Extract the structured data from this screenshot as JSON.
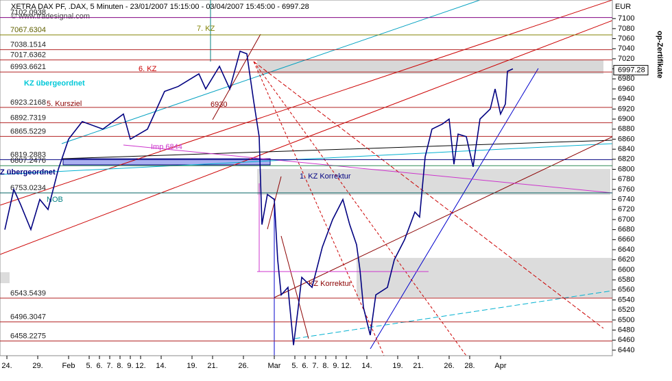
{
  "chart_data": {
    "type": "line",
    "title": "XETRA DAX PF, .DAX, 5 Minuten - 23/01/2007 15:15:00 - 03/04/2007 15:45:00 - 6997.28",
    "subtitle": "© www.tradesignal.com",
    "y_axis_label": "EUR",
    "side_label": "op-Zertifikate",
    "last_value": 6997.28,
    "series": [
      {
        "name": "XETRA DAX PF",
        "color": "#000080",
        "x": [
          0.8,
          1.67,
          2.33,
          3.33,
          4.2,
          5,
          6,
          7,
          8.33,
          10.33,
          12.33,
          13,
          14.67,
          16.33,
          17.67,
          19.67,
          20.33,
          21.67,
          22.67,
          23.67,
          24.33,
          25,
          25.53,
          25.8,
          26.33,
          27,
          27.33,
          27.67,
          28.33,
          28.87,
          29.33,
          29.67,
          30.67,
          31.67,
          32.67,
          33.67,
          34.33,
          35,
          35.33,
          35.67,
          36.33,
          36.87,
          38,
          38.67,
          39.67,
          40.67,
          41.13,
          41.67,
          42.33,
          43.33,
          44,
          44.47,
          44.87,
          45.67,
          46.33,
          47,
          48,
          48.47,
          49,
          49.47,
          49.67,
          50.2
        ],
        "values": [
          6680,
          6760,
          6730,
          6680,
          6740,
          6720,
          6800,
          6860,
          6895,
          6880,
          6910,
          6860,
          6880,
          6955,
          6965,
          6990,
          6960,
          7005,
          6960,
          7035,
          7030,
          6935,
          6865,
          6690,
          6750,
          6740,
          6620,
          6550,
          6565,
          6450,
          6525,
          6585,
          6565,
          6645,
          6700,
          6740,
          6690,
          6650,
          6600,
          6525,
          6470,
          6550,
          6565,
          6620,
          6660,
          6715,
          6705,
          6825,
          6880,
          6890,
          6900,
          6810,
          6870,
          6865,
          6805,
          6900,
          6920,
          6960,
          6910,
          6930,
          6995,
          7000
        ]
      }
    ],
    "levels": [
      {
        "value": 7102.0938,
        "color": "#800080"
      },
      {
        "value": 7067.6304,
        "color": "#808000"
      },
      {
        "value": 7038.1514,
        "color": "#b22222"
      },
      {
        "value": 7017.6362,
        "color": "#b22222"
      },
      {
        "value": 6993.6621,
        "color": "#b22222"
      },
      {
        "value": 6923.2168,
        "color": "#b22222"
      },
      {
        "value": 6892.7319,
        "color": "#b22222"
      },
      {
        "value": 6865.5229,
        "color": "#b22222"
      },
      {
        "value": 6819.2883,
        "color": "#000080"
      },
      {
        "value": 6807.2476,
        "color": "#2e8b57"
      },
      {
        "value": 6753.0234,
        "color": "#006060"
      },
      {
        "value": 6543.5439,
        "color": "#b22222"
      },
      {
        "value": 6496.3047,
        "color": "#b22222"
      },
      {
        "value": 6458.2275,
        "color": "#b22222"
      }
    ],
    "annotations": [
      "7. KZ",
      "6. KZ",
      "KZ übergeordnet",
      "5. Kursziel",
      "Z übergeordnet",
      "1. KZ Korrektur",
      "KZ Korrektur",
      "NOB",
      "Imp 6844",
      "6930"
    ],
    "ylim": [
      6429,
      7137
    ],
    "yticks": [
      6440,
      6460,
      6480,
      6500,
      6520,
      6540,
      6560,
      6580,
      6600,
      6620,
      6640,
      6660,
      6680,
      6700,
      6720,
      6740,
      6760,
      6780,
      6800,
      6820,
      6840,
      6860,
      6880,
      6900,
      6920,
      6940,
      6960,
      6980,
      7000,
      7020,
      7040,
      7060,
      7080,
      7100
    ],
    "xlim": [
      0.33,
      59.87
    ],
    "xticks": [
      {
        "value": 1,
        "label": "24."
      },
      {
        "value": 4,
        "label": "29."
      },
      {
        "value": 7,
        "label": "Feb"
      },
      {
        "value": 9,
        "label": "5."
      },
      {
        "value": 10,
        "label": "6."
      },
      {
        "value": 11,
        "label": "7."
      },
      {
        "value": 12,
        "label": "8."
      },
      {
        "value": 13,
        "label": "9."
      },
      {
        "value": 14,
        "label": "12."
      },
      {
        "value": 16,
        "label": "14."
      },
      {
        "value": 19,
        "label": "19."
      },
      {
        "value": 21,
        "label": "21."
      },
      {
        "value": 24,
        "label": "26."
      },
      {
        "value": 27,
        "label": "Mar"
      },
      {
        "value": 29,
        "label": "5."
      },
      {
        "value": 30,
        "label": "6."
      },
      {
        "value": 31,
        "label": "7."
      },
      {
        "value": 32,
        "label": "8."
      },
      {
        "value": 33,
        "label": "9."
      },
      {
        "value": 34,
        "label": "12."
      },
      {
        "value": 36,
        "label": "14."
      },
      {
        "value": 39,
        "label": "19."
      },
      {
        "value": 41,
        "label": "21."
      },
      {
        "value": 44,
        "label": "26."
      },
      {
        "value": 46,
        "label": "28."
      },
      {
        "value": 49,
        "label": "Apr"
      }
    ]
  }
}
